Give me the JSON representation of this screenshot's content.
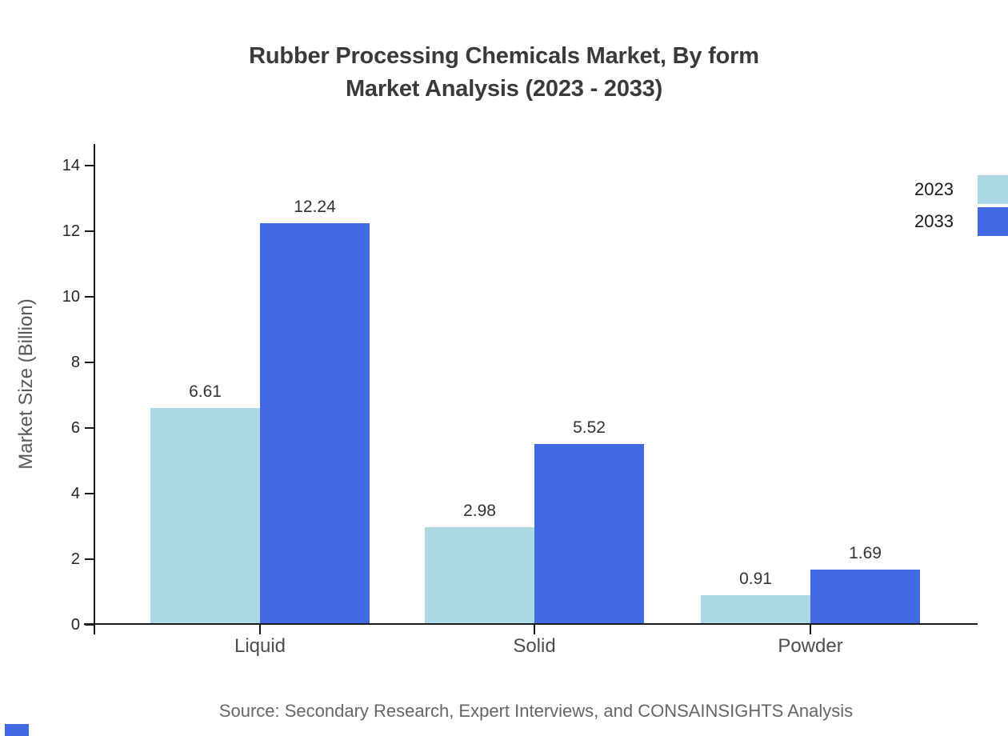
{
  "chart": {
    "title_line1": "Rubber Processing Chemicals Market, By form",
    "title_line2": "Market Analysis (2023 - 2033)",
    "ylabel": "Market Size (Billion)",
    "source": "Source: Secondary Research, Expert Interviews, and CONSAINSIGHTS Analysis"
  },
  "chart_data": {
    "type": "bar",
    "title": "Rubber Processing Chemicals Market, By form Market Analysis (2023 - 2033)",
    "categories": [
      "Liquid",
      "Solid",
      "Powder"
    ],
    "series": [
      {
        "name": "2023",
        "color": "#ADD8E6",
        "values": [
          6.61,
          2.98,
          0.91
        ]
      },
      {
        "name": "2033",
        "color": "#4169E1",
        "values": [
          12.24,
          5.52,
          1.69
        ]
      }
    ],
    "xlabel": "",
    "ylabel": "Market Size (Billion)",
    "ylim": [
      0,
      14.6
    ],
    "yticks": [
      0,
      2,
      4,
      6,
      8,
      10,
      12,
      14
    ],
    "value_labels": true,
    "grid": false,
    "legend_position": "upper-right"
  },
  "colors": {
    "series_2023": "#ADD8E6",
    "series_2033": "#4169E1",
    "axis": "#1a1a1a",
    "title_text": "#3a3a3a",
    "tick_text": "#262626",
    "category_text": "#4d4d4d",
    "ylabel_text": "#595959",
    "source_text": "#666666",
    "value_text": "#333333"
  }
}
